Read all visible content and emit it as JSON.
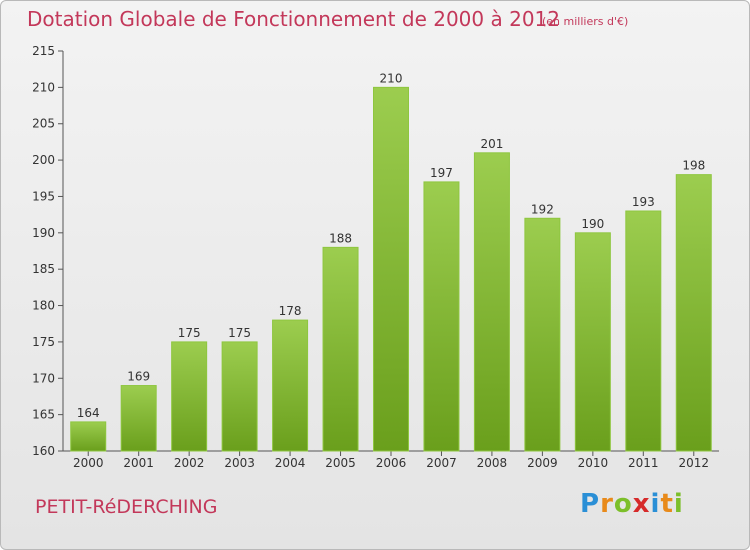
{
  "header": {
    "title": "Dotation Globale de Fonctionnement de 2000 à 2012",
    "unit_note": "(en milliers d'€)"
  },
  "footer": {
    "city": "PETIT-RéDERCHING",
    "logo_letters": [
      "P",
      "r",
      "o",
      "x",
      "i",
      "t",
      "i"
    ],
    "logo_colors": [
      "#2a8fd6",
      "#e88a1a",
      "#7cbf2a",
      "#d62a2a",
      "#2a8fd6",
      "#e88a1a",
      "#7cbf2a"
    ]
  },
  "chart_data": {
    "type": "bar",
    "categories": [
      "2000",
      "2001",
      "2002",
      "2003",
      "2004",
      "2005",
      "2006",
      "2007",
      "2008",
      "2009",
      "2010",
      "2011",
      "2012"
    ],
    "values": [
      164,
      169,
      175,
      175,
      178,
      188,
      210,
      197,
      201,
      192,
      190,
      193,
      198
    ],
    "ylim": [
      160,
      215
    ],
    "yticks": [
      160,
      165,
      170,
      175,
      180,
      185,
      190,
      195,
      200,
      205,
      210,
      215
    ],
    "bar_color_top": "#9ccd4f",
    "bar_color_bottom": "#6a9f1c",
    "grid": false,
    "legend": "none"
  }
}
